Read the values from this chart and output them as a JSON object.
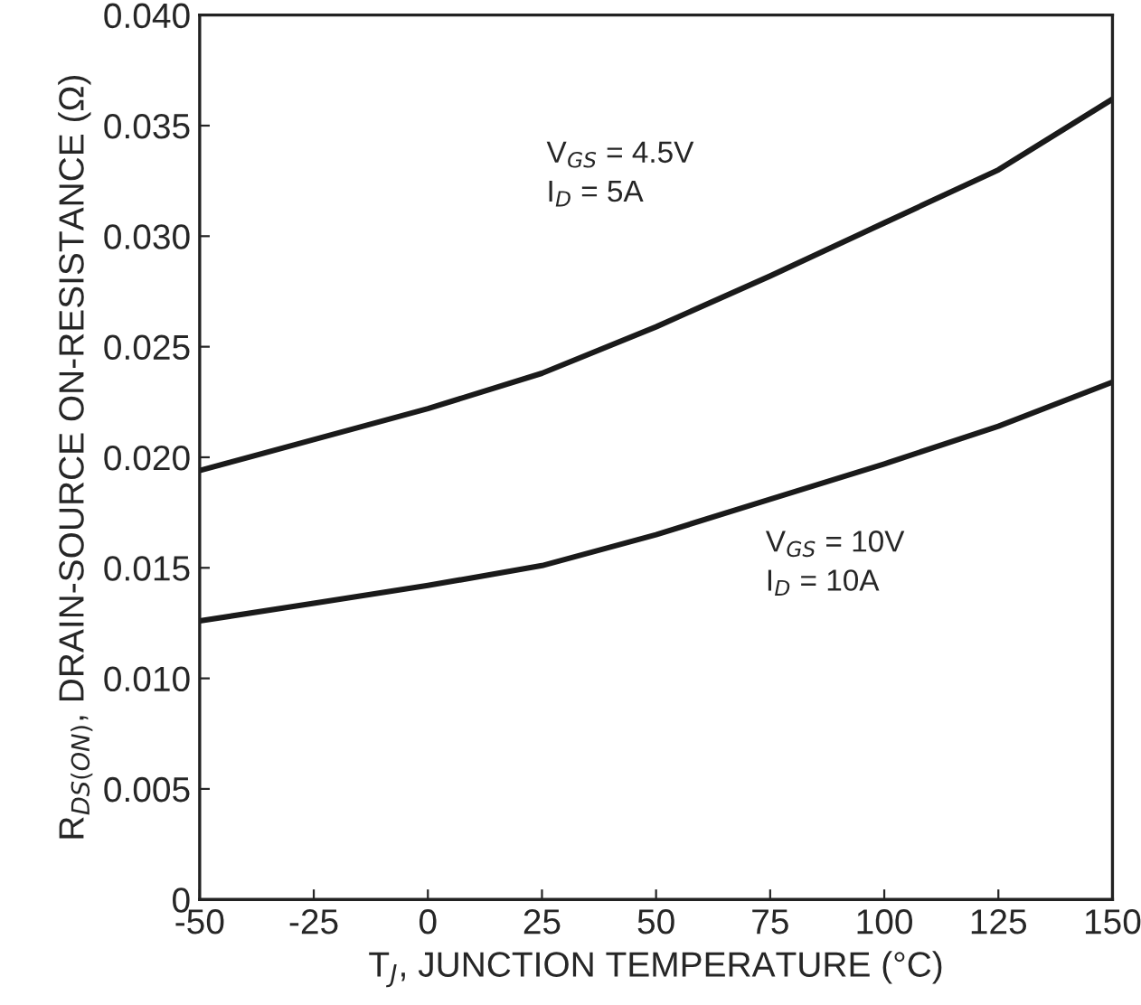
{
  "chart_data": {
    "type": "line",
    "xlabel": "T$_{J}$, JUNCTION TEMPERATURE (°C)",
    "ylabel": "R$_{DS(ON)}$, DRAIN-SOURCE ON-RESISTANCE (Ω)",
    "x": [
      -50,
      -25,
      0,
      25,
      50,
      75,
      100,
      125,
      150
    ],
    "series": [
      {
        "name": "V$_{GS}$ = 4.5V\nI$_{D}$ = 5A",
        "color": "#1a1a1a",
        "values": [
          0.0194,
          0.0208,
          0.0222,
          0.0238,
          0.0259,
          0.0282,
          0.0306,
          0.033,
          0.0362
        ]
      },
      {
        "name": "V$_{GS}$ = 10V\nI$_{D}$ = 10A",
        "color": "#1a1a1a",
        "values": [
          0.0126,
          0.0134,
          0.0142,
          0.0151,
          0.0165,
          0.0181,
          0.0197,
          0.0214,
          0.0234
        ]
      }
    ],
    "xlim": [
      -50,
      150
    ],
    "xticks": [
      -50,
      -25,
      0,
      25,
      50,
      75,
      100,
      125,
      150
    ],
    "ylim": [
      0,
      0.04
    ],
    "yticks": [
      {
        "value": 0,
        "label": "0"
      },
      {
        "value": 0.005,
        "label": "0.005"
      },
      {
        "value": 0.01,
        "label": "0.010"
      },
      {
        "value": 0.015,
        "label": "0.015"
      },
      {
        "value": 0.02,
        "label": "0.020"
      },
      {
        "value": 0.025,
        "label": "0.025"
      },
      {
        "value": 0.03,
        "label": "0.030"
      },
      {
        "value": 0.035,
        "label": "0.035"
      },
      {
        "value": 0.04,
        "label": "0.040"
      }
    ],
    "grid": false,
    "legend": false,
    "line_style": "solid",
    "marker": "none"
  }
}
